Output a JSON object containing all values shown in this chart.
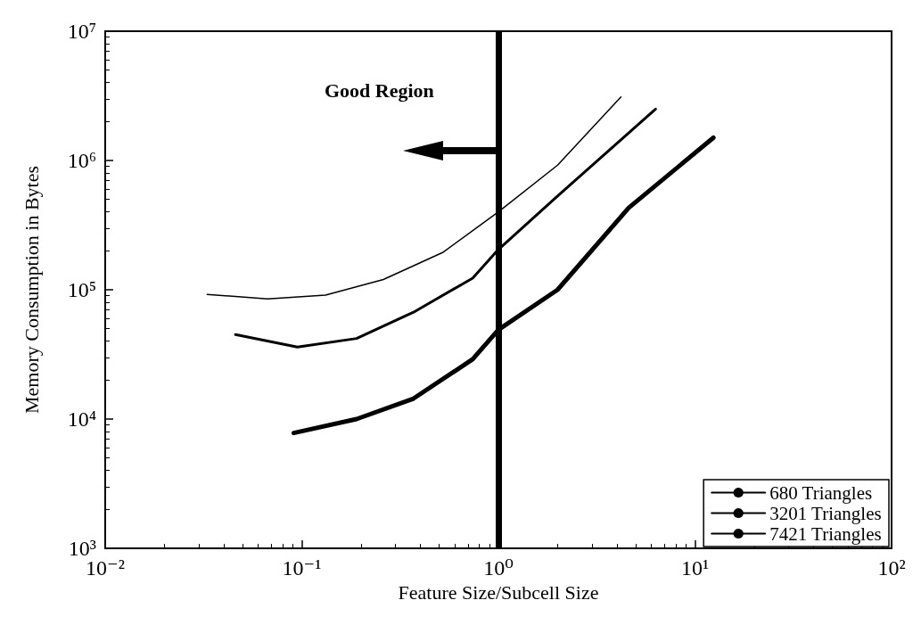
{
  "chart_data": {
    "type": "line",
    "xlabel": "Feature Size/Subcell Size",
    "ylabel": "Memory Consumption in Bytes",
    "log": "xy",
    "xlim": [
      0.01,
      100
    ],
    "ylim": [
      1000,
      10000000
    ],
    "xticks": [
      {
        "value": 0.01,
        "label": "10⁻²"
      },
      {
        "value": 0.1,
        "label": "10⁻¹"
      },
      {
        "value": 1,
        "label": "10⁰"
      },
      {
        "value": 10,
        "label": "10¹"
      },
      {
        "value": 100,
        "label": "10²"
      }
    ],
    "yticks": [
      {
        "value": 1000,
        "label": "10³"
      },
      {
        "value": 10000,
        "label": "10⁴"
      },
      {
        "value": 100000,
        "label": "10⁵"
      },
      {
        "value": 1000000,
        "label": "10⁶"
      },
      {
        "value": 10000000,
        "label": "10⁷"
      }
    ],
    "series": [
      {
        "name": "680 Triangles",
        "color": "#000000",
        "x": [
          0.091,
          0.19,
          0.37,
          0.74,
          1.0,
          2.0,
          4.6,
          12.4
        ],
        "values": [
          7800,
          10000,
          14400,
          29000,
          49000,
          100000,
          430000,
          1500000
        ]
      },
      {
        "name": "3201 Triangles",
        "color": "#000000",
        "x": [
          0.046,
          0.095,
          0.19,
          0.37,
          0.74,
          1.0,
          2.0,
          6.3
        ],
        "values": [
          45000,
          36000,
          42000,
          67000,
          123000,
          205000,
          530000,
          2500000
        ]
      },
      {
        "name": "7421 Triangles",
        "color": "#000000",
        "x": [
          0.033,
          0.067,
          0.132,
          0.26,
          0.52,
          1.0,
          2.0,
          4.2
        ],
        "values": [
          92000,
          85000,
          91000,
          120000,
          194000,
          400000,
          920000,
          3100000
        ]
      }
    ],
    "ref_lines": [
      {
        "axis": "x",
        "value": 1,
        "color": "#000000"
      }
    ],
    "annotations": [
      "Good Region"
    ],
    "legend": "bottom right",
    "grid": false,
    "marker": "none",
    "line_style": "solid"
  }
}
